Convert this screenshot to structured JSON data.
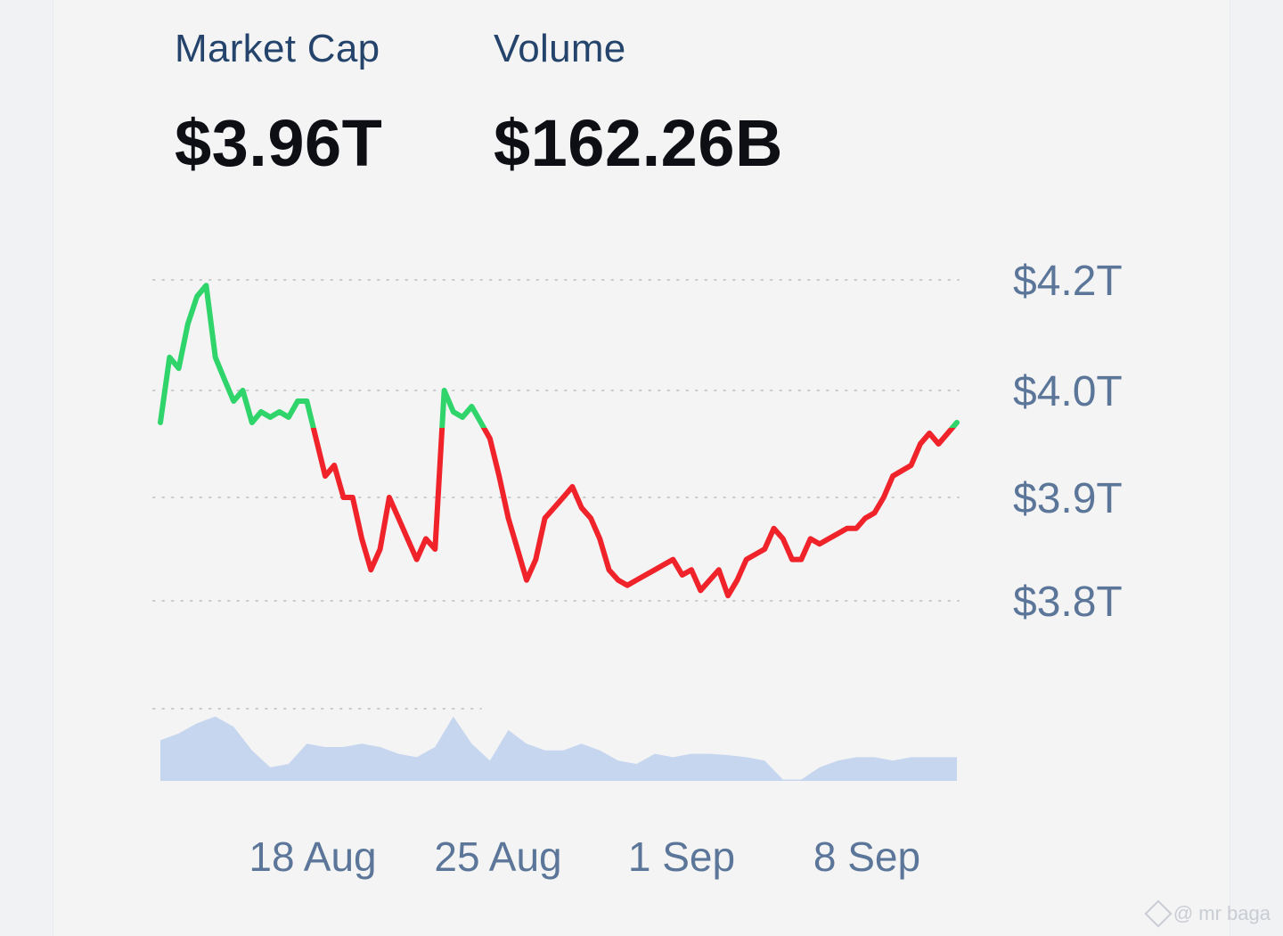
{
  "stats": {
    "market_cap": {
      "label": "Market Cap",
      "value": "$3.96T"
    },
    "volume": {
      "label": "Volume",
      "value": "$162.26B"
    }
  },
  "watermark": {
    "text": "@ mr baga"
  },
  "colors": {
    "up": "#2fd46a",
    "down": "#f0232b",
    "volume": "#c6d6ef",
    "axis_text": "#5b7699",
    "grid": "#c7c9cc"
  },
  "chart_data": {
    "type": "line",
    "title": "",
    "xlabel": "",
    "ylabel": "",
    "y_ticks": [
      {
        "value": 4.2,
        "label": "$4.2T"
      },
      {
        "value": 4.0,
        "label": "$4.0T"
      },
      {
        "value": 3.9,
        "label": "$3.9T"
      },
      {
        "value": 3.8,
        "label": "$3.8T"
      }
    ],
    "x_ticks": [
      {
        "date": "2025-08-18",
        "label": "18 Aug"
      },
      {
        "date": "2025-08-25",
        "label": "25 Aug"
      },
      {
        "date": "2025-09-01",
        "label": "1 Sep"
      },
      {
        "date": "2025-09-08",
        "label": "8 Sep"
      }
    ],
    "baseline": 3.965,
    "grid": true,
    "axis_position": "right",
    "series": [
      {
        "colors": "green above baseline, red below",
        "points": [
          [
            "2025-08-13T00:00",
            3.97
          ],
          [
            "2025-08-13T06:00",
            4.06
          ],
          [
            "2025-08-13T12:00",
            4.04
          ],
          [
            "2025-08-13T18:00",
            4.12
          ],
          [
            "2025-08-14T00:00",
            4.17
          ],
          [
            "2025-08-14T06:00",
            4.19
          ],
          [
            "2025-08-14T12:00",
            4.06
          ],
          [
            "2025-08-14T18:00",
            4.02
          ],
          [
            "2025-08-15T00:00",
            3.99
          ],
          [
            "2025-08-15T06:00",
            4.0
          ],
          [
            "2025-08-15T12:00",
            3.97
          ],
          [
            "2025-08-15T18:00",
            3.98
          ],
          [
            "2025-08-16T00:00",
            3.975
          ],
          [
            "2025-08-16T06:00",
            3.98
          ],
          [
            "2025-08-16T12:00",
            3.975
          ],
          [
            "2025-08-16T18:00",
            3.99
          ],
          [
            "2025-08-17T00:00",
            3.99
          ],
          [
            "2025-08-17T06:00",
            3.955
          ],
          [
            "2025-08-17T12:00",
            3.92
          ],
          [
            "2025-08-17T18:00",
            3.93
          ],
          [
            "2025-08-18T00:00",
            3.9
          ],
          [
            "2025-08-18T06:00",
            3.9
          ],
          [
            "2025-08-18T12:00",
            3.86
          ],
          [
            "2025-08-18T18:00",
            3.83
          ],
          [
            "2025-08-19T00:00",
            3.85
          ],
          [
            "2025-08-19T06:00",
            3.9
          ],
          [
            "2025-08-19T12:00",
            3.88
          ],
          [
            "2025-08-19T18:00",
            3.86
          ],
          [
            "2025-08-20T00:00",
            3.84
          ],
          [
            "2025-08-20T06:00",
            3.86
          ],
          [
            "2025-08-20T12:00",
            3.85
          ],
          [
            "2025-08-20T18:00",
            4.0
          ],
          [
            "2025-08-21T00:00",
            3.98
          ],
          [
            "2025-08-21T06:00",
            3.975
          ],
          [
            "2025-08-21T12:00",
            3.985
          ],
          [
            "2025-08-21T18:00",
            3.97
          ],
          [
            "2025-08-22T00:00",
            3.955
          ],
          [
            "2025-08-22T06:00",
            3.92
          ],
          [
            "2025-08-22T12:00",
            3.88
          ],
          [
            "2025-08-22T18:00",
            3.85
          ],
          [
            "2025-08-23T00:00",
            3.82
          ],
          [
            "2025-08-23T06:00",
            3.84
          ],
          [
            "2025-08-23T12:00",
            3.88
          ],
          [
            "2025-08-23T18:00",
            3.89
          ],
          [
            "2025-08-24T00:00",
            3.9
          ],
          [
            "2025-08-24T06:00",
            3.91
          ],
          [
            "2025-08-24T12:00",
            3.89
          ],
          [
            "2025-08-24T18:00",
            3.88
          ],
          [
            "2025-08-25T00:00",
            3.86
          ],
          [
            "2025-08-25T06:00",
            3.83
          ],
          [
            "2025-08-25T12:00",
            3.82
          ],
          [
            "2025-08-25T18:00",
            3.815
          ],
          [
            "2025-08-26T00:00",
            3.82
          ],
          [
            "2025-08-26T06:00",
            3.825
          ],
          [
            "2025-08-26T12:00",
            3.83
          ],
          [
            "2025-08-26T18:00",
            3.835
          ],
          [
            "2025-08-27T00:00",
            3.84
          ],
          [
            "2025-08-27T06:00",
            3.825
          ],
          [
            "2025-08-27T12:00",
            3.83
          ],
          [
            "2025-08-27T18:00",
            3.81
          ],
          [
            "2025-08-28T00:00",
            3.82
          ],
          [
            "2025-08-28T06:00",
            3.83
          ],
          [
            "2025-08-28T12:00",
            3.805
          ],
          [
            "2025-08-28T18:00",
            3.82
          ],
          [
            "2025-08-29T00:00",
            3.84
          ],
          [
            "2025-08-29T06:00",
            3.845
          ],
          [
            "2025-08-29T12:00",
            3.85
          ],
          [
            "2025-08-29T18:00",
            3.87
          ],
          [
            "2025-08-30T00:00",
            3.86
          ],
          [
            "2025-08-30T06:00",
            3.84
          ],
          [
            "2025-08-30T12:00",
            3.84
          ],
          [
            "2025-08-30T18:00",
            3.86
          ],
          [
            "2025-08-31T00:00",
            3.855
          ],
          [
            "2025-08-31T06:00",
            3.86
          ],
          [
            "2025-08-31T12:00",
            3.865
          ],
          [
            "2025-08-31T18:00",
            3.87
          ],
          [
            "2025-09-01T00:00",
            3.87
          ],
          [
            "2025-09-01T06:00",
            3.88
          ],
          [
            "2025-09-01T12:00",
            3.885
          ],
          [
            "2025-09-01T18:00",
            3.9
          ],
          [
            "2025-09-02T00:00",
            3.92
          ],
          [
            "2025-09-02T06:00",
            3.925
          ],
          [
            "2025-09-02T12:00",
            3.93
          ],
          [
            "2025-09-02T18:00",
            3.95
          ],
          [
            "2025-09-03T00:00",
            3.96
          ],
          [
            "2025-09-03T06:00",
            3.95
          ],
          [
            "2025-09-03T12:00",
            3.96
          ],
          [
            "2025-09-03T18:00",
            3.97
          ]
        ]
      }
    ],
    "volume": {
      "points": [
        [
          "2025-08-13T00:00",
          0.6
        ],
        [
          "2025-08-13T12:00",
          0.7
        ],
        [
          "2025-08-14T00:00",
          0.85
        ],
        [
          "2025-08-14T12:00",
          0.95
        ],
        [
          "2025-08-15T00:00",
          0.8
        ],
        [
          "2025-08-15T12:00",
          0.45
        ],
        [
          "2025-08-16T00:00",
          0.2
        ],
        [
          "2025-08-16T12:00",
          0.25
        ],
        [
          "2025-08-17T00:00",
          0.55
        ],
        [
          "2025-08-17T12:00",
          0.5
        ],
        [
          "2025-08-18T00:00",
          0.5
        ],
        [
          "2025-08-18T12:00",
          0.55
        ],
        [
          "2025-08-19T00:00",
          0.5
        ],
        [
          "2025-08-19T12:00",
          0.4
        ],
        [
          "2025-08-20T00:00",
          0.35
        ],
        [
          "2025-08-20T12:00",
          0.5
        ],
        [
          "2025-08-21T00:00",
          0.95
        ],
        [
          "2025-08-21T12:00",
          0.55
        ],
        [
          "2025-08-22T00:00",
          0.3
        ],
        [
          "2025-08-22T12:00",
          0.75
        ],
        [
          "2025-08-23T00:00",
          0.55
        ],
        [
          "2025-08-23T12:00",
          0.45
        ],
        [
          "2025-08-24T00:00",
          0.45
        ],
        [
          "2025-08-24T12:00",
          0.55
        ],
        [
          "2025-08-25T00:00",
          0.45
        ],
        [
          "2025-08-25T12:00",
          0.3
        ],
        [
          "2025-08-26T00:00",
          0.25
        ],
        [
          "2025-08-26T12:00",
          0.4
        ],
        [
          "2025-08-27T00:00",
          0.35
        ],
        [
          "2025-08-27T12:00",
          0.4
        ],
        [
          "2025-08-28T00:00",
          0.4
        ],
        [
          "2025-08-28T12:00",
          0.38
        ],
        [
          "2025-08-29T00:00",
          0.35
        ],
        [
          "2025-08-29T12:00",
          0.3
        ],
        [
          "2025-08-30T00:00",
          0.02
        ],
        [
          "2025-08-30T12:00",
          0.02
        ],
        [
          "2025-08-31T00:00",
          0.2
        ],
        [
          "2025-08-31T12:00",
          0.3
        ],
        [
          "2025-09-01T00:00",
          0.35
        ],
        [
          "2025-09-01T12:00",
          0.35
        ],
        [
          "2025-09-02T00:00",
          0.3
        ],
        [
          "2025-09-02T12:00",
          0.35
        ],
        [
          "2025-09-03T00:00",
          0.35
        ],
        [
          "2025-09-03T12:00",
          0.35
        ]
      ]
    }
  }
}
